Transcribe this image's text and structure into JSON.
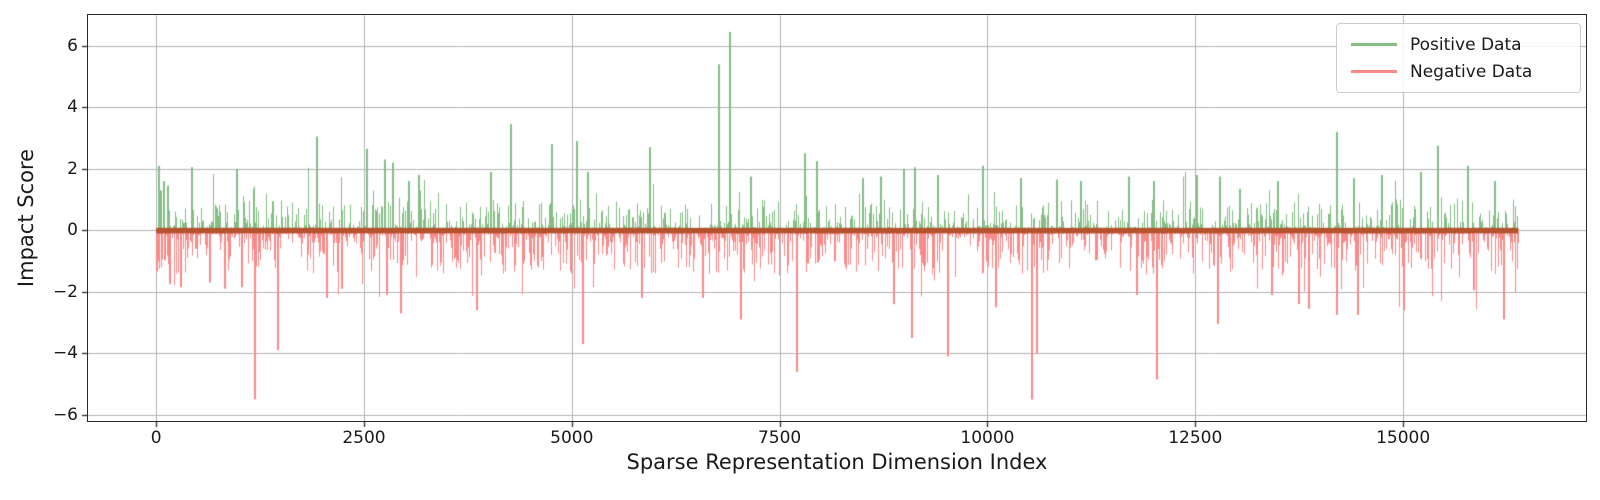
{
  "chart_data": {
    "type": "bar",
    "title": "",
    "xlabel": "Sparse Representation Dimension Index",
    "ylabel": "Impact Score",
    "x_range": [
      0,
      16384
    ],
    "xlim": [
      -820,
      17200
    ],
    "ylim": [
      -6.2,
      7.0
    ],
    "x_ticks": [
      0,
      2500,
      5000,
      7500,
      10000,
      12500,
      15000
    ],
    "x_tick_labels": [
      "0",
      "2500",
      "5000",
      "7500",
      "10000",
      "12500",
      "15000"
    ],
    "y_ticks": [
      6,
      4,
      2,
      0,
      -2,
      -4,
      -6
    ],
    "y_tick_labels": [
      "6",
      "4",
      "2",
      "0",
      "−2",
      "−4",
      "−6"
    ],
    "grid": true,
    "grid_color": "#b3b3b3",
    "spine_color": "#2a2a2a",
    "zero_band_color": "#b4532e",
    "zero_band_range": [
      0.08,
      -0.1
    ],
    "legend_position": "top-right",
    "legend": {
      "items": [
        {
          "label": "Positive Data",
          "color": "#85bd85"
        },
        {
          "label": "Negative Data",
          "color": "#f98a8a"
        }
      ]
    },
    "series": [
      {
        "name": "Positive Data",
        "color": "#85bd85",
        "sign": "positive",
        "typical_range": [
          0.05,
          1.2
        ],
        "spikes": [
          [
            30,
            2.1
          ],
          [
            60,
            1.3
          ],
          [
            90,
            1.6
          ],
          [
            140,
            1.45
          ],
          [
            433,
            2.05
          ],
          [
            975,
            2.0
          ],
          [
            1180,
            1.35
          ],
          [
            1938,
            3.05
          ],
          [
            2540,
            2.65
          ],
          [
            2750,
            2.3
          ],
          [
            2850,
            2.2
          ],
          [
            3046,
            1.6
          ],
          [
            3167,
            1.8
          ],
          [
            4033,
            1.9
          ],
          [
            4274,
            3.45
          ],
          [
            4756,
            2.8
          ],
          [
            5057,
            2.9
          ],
          [
            5190,
            1.9
          ],
          [
            5935,
            2.7
          ],
          [
            6765,
            5.4
          ],
          [
            6897,
            6.45
          ],
          [
            7150,
            1.75
          ],
          [
            7800,
            2.5
          ],
          [
            7950,
            2.25
          ],
          [
            8500,
            1.7
          ],
          [
            8715,
            1.75
          ],
          [
            9000,
            2.0
          ],
          [
            9125,
            2.05
          ],
          [
            9400,
            1.8
          ],
          [
            9944,
            2.1
          ],
          [
            10400,
            1.7
          ],
          [
            10834,
            1.65
          ],
          [
            11124,
            1.6
          ],
          [
            11700,
            1.75
          ],
          [
            12000,
            1.6
          ],
          [
            12520,
            1.8
          ],
          [
            12800,
            1.75
          ],
          [
            13038,
            1.35
          ],
          [
            13500,
            1.6
          ],
          [
            14206,
            3.2
          ],
          [
            14411,
            1.7
          ],
          [
            14748,
            1.8
          ],
          [
            15217,
            1.9
          ],
          [
            15422,
            2.75
          ],
          [
            15783,
            2.1
          ],
          [
            16100,
            1.6
          ]
        ]
      },
      {
        "name": "Negative Data",
        "color": "#f98a8a",
        "sign": "negative",
        "typical_range": [
          -1.3,
          -0.05
        ],
        "spikes": [
          [
            170,
            -1.75
          ],
          [
            300,
            -1.85
          ],
          [
            650,
            -1.7
          ],
          [
            830,
            -1.9
          ],
          [
            1035,
            -1.85
          ],
          [
            1192,
            -5.5
          ],
          [
            1470,
            -3.9
          ],
          [
            2058,
            -2.2
          ],
          [
            2240,
            -1.9
          ],
          [
            2780,
            -2.1
          ],
          [
            2950,
            -2.7
          ],
          [
            3865,
            -2.6
          ],
          [
            5129,
            -3.7
          ],
          [
            5839,
            -2.2
          ],
          [
            6573,
            -2.2
          ],
          [
            7030,
            -2.9
          ],
          [
            7705,
            -4.6
          ],
          [
            8873,
            -2.4
          ],
          [
            9089,
            -3.5
          ],
          [
            9523,
            -4.1
          ],
          [
            10100,
            -2.5
          ],
          [
            10533,
            -5.5
          ],
          [
            10594,
            -4.0
          ],
          [
            11797,
            -2.1
          ],
          [
            12040,
            -4.85
          ],
          [
            12772,
            -3.05
          ],
          [
            13424,
            -2.1
          ],
          [
            13749,
            -2.4
          ],
          [
            13869,
            -2.55
          ],
          [
            14206,
            -2.75
          ],
          [
            14459,
            -2.75
          ],
          [
            15013,
            -2.6
          ],
          [
            15855,
            -1.95
          ],
          [
            16217,
            -2.9
          ]
        ]
      }
    ],
    "noise": {
      "seed": 20240613,
      "columns": 1361,
      "positive": {
        "tiny_frac": 0.3,
        "tiny": [
          0.02,
          0.1
        ],
        "base": 0.05,
        "amp": 0.95,
        "pow": 2.6,
        "burst_frac": 0.05,
        "burst": [
          0.5,
          1.2
        ]
      },
      "negative": {
        "tiny_frac": 0.22,
        "tiny": [
          0.03,
          0.13
        ],
        "base": 0.07,
        "amp": 1.35,
        "pow": 2.2,
        "burst_frac": 0.07,
        "burst": [
          0.4,
          1.3
        ]
      }
    }
  }
}
